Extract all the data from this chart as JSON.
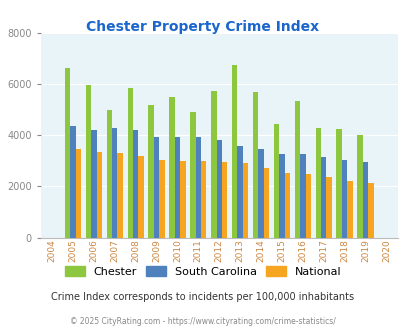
{
  "title": "Chester Property Crime Index",
  "years": [
    2004,
    2005,
    2006,
    2007,
    2008,
    2009,
    2010,
    2011,
    2012,
    2013,
    2014,
    2015,
    2016,
    2017,
    2018,
    2019,
    2020
  ],
  "chester": [
    null,
    6650,
    5950,
    5000,
    5850,
    5200,
    5500,
    4900,
    5750,
    6750,
    5700,
    4450,
    5350,
    4300,
    4250,
    4000,
    null
  ],
  "south_carolina": [
    null,
    4380,
    4200,
    4280,
    4200,
    3950,
    3950,
    3950,
    3820,
    3600,
    3450,
    3280,
    3250,
    3150,
    3050,
    2950,
    null
  ],
  "national": [
    null,
    3450,
    3350,
    3300,
    3200,
    3050,
    2980,
    2980,
    2940,
    2930,
    2720,
    2530,
    2500,
    2360,
    2220,
    2120,
    null
  ],
  "chester_color": "#8dc63f",
  "sc_color": "#4f81bd",
  "national_color": "#f6a521",
  "bg_color": "#e8f4f8",
  "ylim": [
    0,
    8000
  ],
  "yticks": [
    0,
    2000,
    4000,
    6000,
    8000
  ],
  "subtitle": "Crime Index corresponds to incidents per 100,000 inhabitants",
  "footer": "© 2025 CityRating.com - https://www.cityrating.com/crime-statistics/",
  "title_color": "#1a66cc",
  "subtitle_color": "#333333",
  "footer_color": "#888888",
  "tick_color": "#cc8844"
}
